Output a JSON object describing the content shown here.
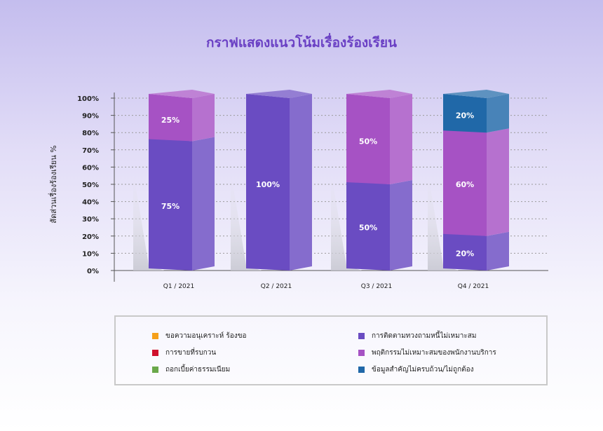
{
  "chart_data": {
    "type": "bar",
    "stacked": true,
    "three_d": true,
    "title": "กราฟแสดงแนวโน้มเรื่องร้องเรียน",
    "ylabel": "สัดส่วนเรื่องร้องเรียน %",
    "xlabel": "",
    "ylim": [
      0,
      100
    ],
    "y_ticks": [
      "0%",
      "10%",
      "20%",
      "30%",
      "40%",
      "50%",
      "60%",
      "70%",
      "80%",
      "90%",
      "100%"
    ],
    "grid": true,
    "legend_position": "bottom",
    "categories": [
      "Q1 / 2021",
      "Q2 / 2021",
      "Q3 / 2021",
      "Q4 / 2021"
    ],
    "series": [
      {
        "name": "ขอความอนุเคราะห์ ร้องขอ",
        "color": "#f5a01a",
        "values": [
          0,
          0,
          0,
          0
        ]
      },
      {
        "name": "การติดตามทวงถามหนี้ไม่เหมาะสม",
        "color": "#6a4cc2",
        "values": [
          75,
          100,
          50,
          20
        ]
      },
      {
        "name": "การขายที่รบกวน",
        "color": "#d0102c",
        "values": [
          0,
          0,
          0,
          0
        ]
      },
      {
        "name": "พฤติกรรมไม่เหมาะสมของพนักงานบริการ",
        "color": "#a652c4",
        "values": [
          25,
          0,
          50,
          60
        ]
      },
      {
        "name": "ถอกเบี้ยค่าธรรมเนียม",
        "color": "#6aa84a",
        "values": [
          0,
          0,
          0,
          0
        ]
      },
      {
        "name": "ข้อมูลสำคัญไม่ครบถ้วน/ไม่ถูกต้อง",
        "color": "#2068a8",
        "values": [
          0,
          0,
          0,
          20
        ]
      }
    ],
    "data_labels": [
      {
        "category": "Q1 / 2021",
        "series": "การติดตามทวงถามหนี้ไม่เหมาะสม",
        "text": "75%"
      },
      {
        "category": "Q1 / 2021",
        "series": "พฤติกรรมไม่เหมาะสมของพนักงานบริการ",
        "text": "25%"
      },
      {
        "category": "Q2 / 2021",
        "series": "การติดตามทวงถามหนี้ไม่เหมาะสม",
        "text": "100%"
      },
      {
        "category": "Q3 / 2021",
        "series": "การติดตามทวงถามหนี้ไม่เหมาะสม",
        "text": "50%"
      },
      {
        "category": "Q3 / 2021",
        "series": "พฤติกรรมไม่เหมาะสมของพนักงานบริการ",
        "text": "50%"
      },
      {
        "category": "Q4 / 2021",
        "series": "ข้อมูลสำคัญไม่ครบถ้วน/ไม่ถูกต้อง",
        "text": "20%"
      },
      {
        "category": "Q4 / 2021",
        "series": "การติดตามทวงถามหนี้ไม่เหมาะสม",
        "text": "20%"
      },
      {
        "category": "Q4 / 2021",
        "series": "พฤติกรรมไม่เหมาะสมของพนักงานบริการ",
        "text": "60%"
      }
    ]
  }
}
